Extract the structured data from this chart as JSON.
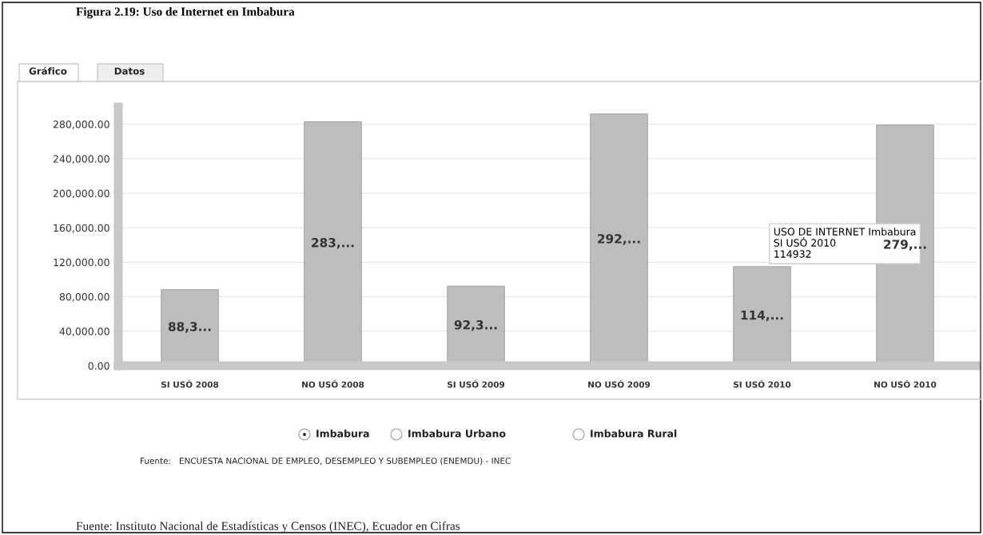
{
  "chart_data": {
    "type": "bar",
    "title": "Figura 2.19: Uso de Internet en Imbabura",
    "categories": [
      "SI USÓ 2008",
      "NO USÓ 2008",
      "SI USÓ 2009",
      "NO USÓ 2009",
      "SI USÓ 2010",
      "NO USÓ 2010"
    ],
    "values": [
      88300,
      283000,
      92300,
      292000,
      114932,
      279000
    ],
    "value_labels": [
      "88,3...",
      "283,...",
      "92,3...",
      "292,...",
      "114,...",
      "279,..."
    ],
    "color": "#bdbdbd",
    "ylim": [
      0,
      300000
    ],
    "yticks": [
      {
        "value": 0,
        "label": "0.00"
      },
      {
        "value": 40000,
        "label": "40,000.00"
      },
      {
        "value": 80000,
        "label": "80,000.00"
      },
      {
        "value": 120000,
        "label": "120,000.00"
      },
      {
        "value": 160000,
        "label": "160,000.00"
      },
      {
        "value": 200000,
        "label": "200,000.00"
      },
      {
        "value": 240000,
        "label": "240,000.00"
      },
      {
        "value": 280000,
        "label": "280,000.00"
      }
    ],
    "grid": "y",
    "annotations": [
      {
        "text": "USO DE INTERNET Imbabura\nSI USÓ 2010\n114932",
        "x": "SI USÓ 2010",
        "y": 114932
      },
      "Gráfico",
      "Datos",
      "Imbabura",
      "Imbabura Urbano",
      "Imbabura Rural",
      "Fuente:   ENCUESTA NACIONAL DE EMPLEO, DESEMPLEO Y SUBEMPLEO (ENEMDU) - INEC",
      "Fuente: Instituto Nacional de Estadísticas y Censos (INEC), Ecuador en Cifras"
    ]
  }
}
